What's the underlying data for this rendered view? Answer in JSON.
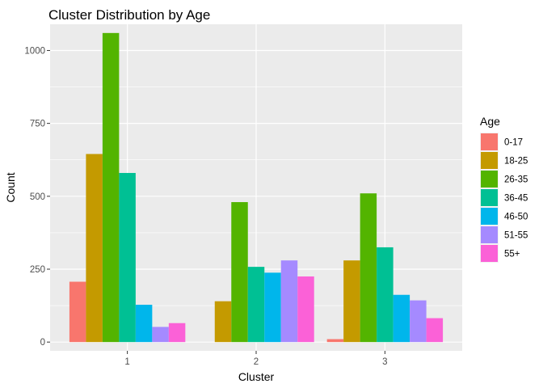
{
  "chart_data": {
    "type": "bar",
    "title": "Cluster Distribution by Age",
    "xlabel": "Cluster",
    "ylabel": "Count",
    "categories": [
      "1",
      "2",
      "3"
    ],
    "ylim": [
      -30,
      1090
    ],
    "yticks": [
      0,
      250,
      500,
      750,
      1000
    ],
    "ytick_labels": [
      "0",
      "250",
      "500",
      "750",
      "1000"
    ],
    "grid": true,
    "legend_title": "Age",
    "legend_position": "right",
    "series": [
      {
        "name": "0-17",
        "color": "#F8766D",
        "values": [
          207,
          0,
          10
        ]
      },
      {
        "name": "18-25",
        "color": "#C49A00",
        "values": [
          645,
          140,
          280
        ]
      },
      {
        "name": "26-35",
        "color": "#53B400",
        "values": [
          1060,
          480,
          510
        ]
      },
      {
        "name": "36-45",
        "color": "#00C094",
        "values": [
          580,
          258,
          325
        ]
      },
      {
        "name": "46-50",
        "color": "#00B6EB",
        "values": [
          128,
          238,
          162
        ]
      },
      {
        "name": "51-55",
        "color": "#A58AFF",
        "values": [
          52,
          280,
          143
        ]
      },
      {
        "name": "55+",
        "color": "#FB61D7",
        "values": [
          65,
          225,
          82
        ]
      }
    ]
  }
}
